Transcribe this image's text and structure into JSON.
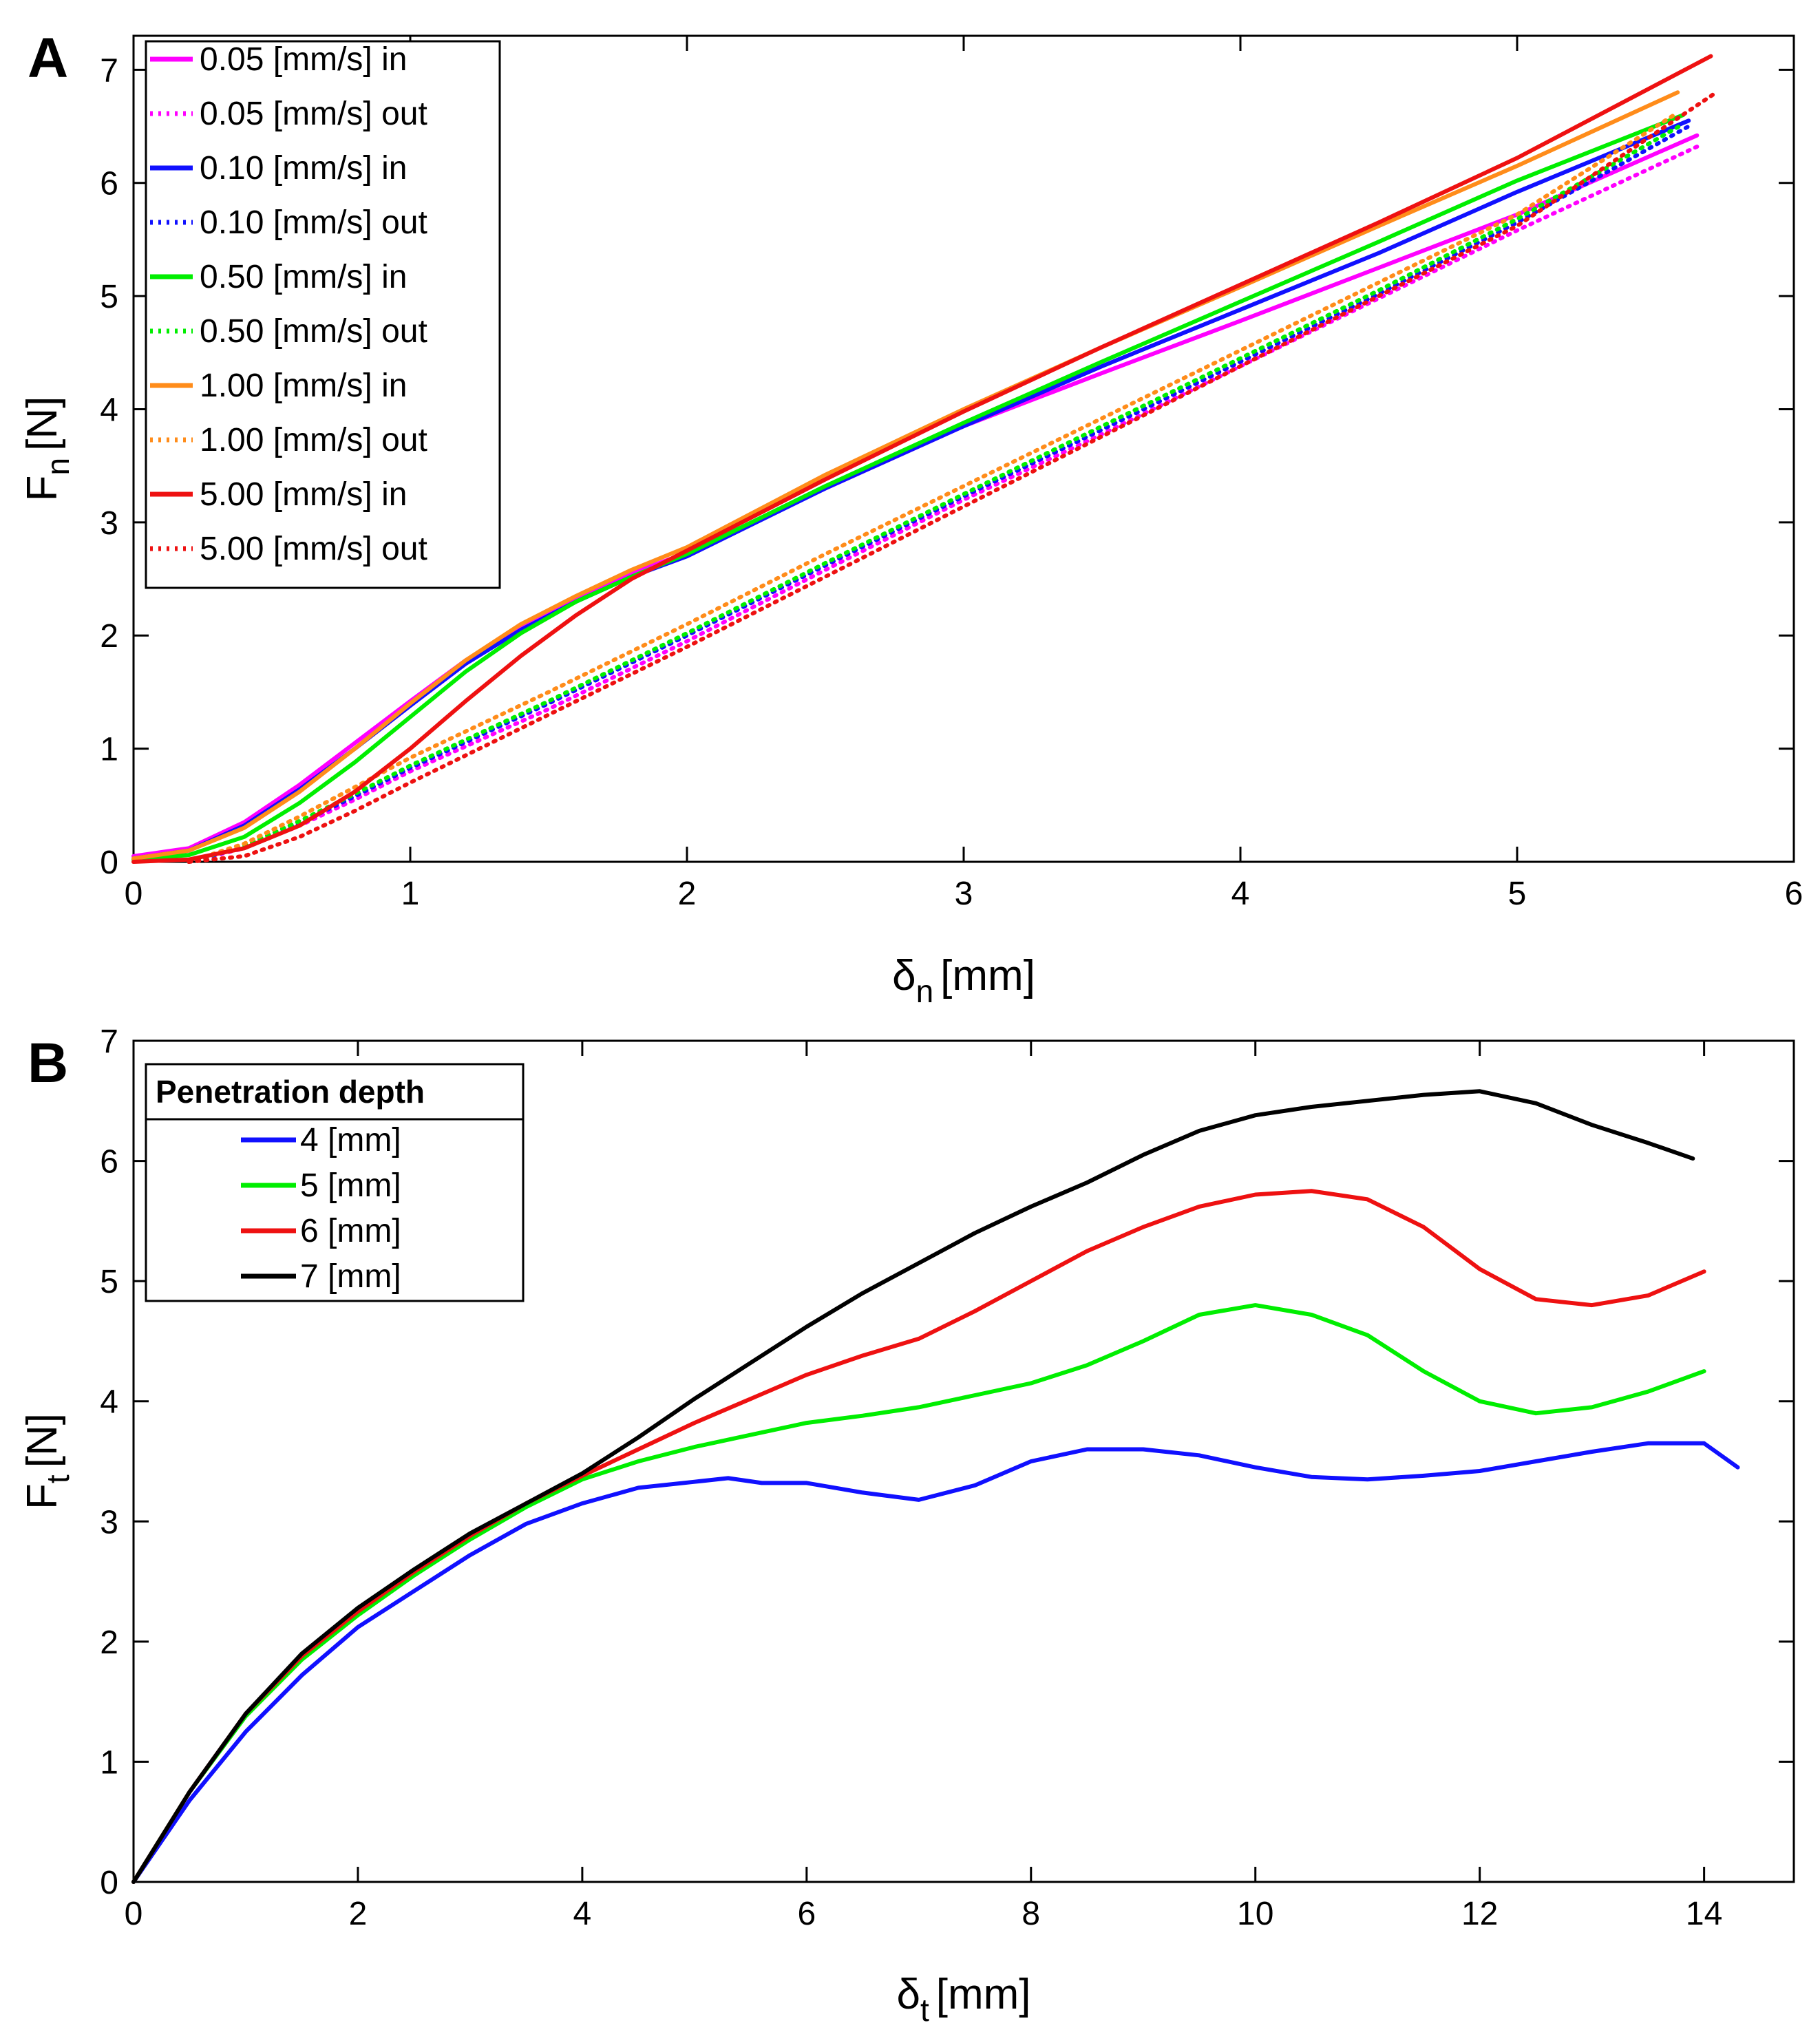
{
  "figure": {
    "panels": [
      "A",
      "B"
    ]
  },
  "chart_data": [
    {
      "panel": "A",
      "type": "line",
      "xlabel": {
        "symbol": "δ",
        "sub": "n",
        "unit": "[mm]"
      },
      "ylabel": {
        "symbol": "F",
        "sub": "n",
        "unit": "[N]"
      },
      "xlim": [
        0,
        6
      ],
      "ylim": [
        0,
        7.3
      ],
      "xticks": [
        0,
        1,
        2,
        3,
        4,
        5,
        6
      ],
      "yticks": [
        0,
        1,
        2,
        3,
        4,
        5,
        6,
        7
      ],
      "grid": false,
      "legend_position": "top-left",
      "series": [
        {
          "name": "0.05 [mm/s] in",
          "color": "#ff00ff",
          "dash": "solid",
          "x": [
            0,
            0.2,
            0.4,
            0.6,
            0.8,
            1.0,
            1.2,
            1.4,
            1.6,
            1.8,
            2.0,
            2.5,
            3.0,
            3.5,
            4.0,
            4.5,
            5.0,
            5.65
          ],
          "y": [
            0.05,
            0.12,
            0.35,
            0.68,
            1.05,
            1.42,
            1.78,
            2.08,
            2.32,
            2.55,
            2.73,
            3.3,
            3.85,
            4.32,
            4.78,
            5.25,
            5.72,
            6.42
          ]
        },
        {
          "name": "0.05 [mm/s] out",
          "color": "#ff00ff",
          "dash": "dotted",
          "x": [
            0.2,
            0.4,
            0.6,
            0.8,
            1.0,
            1.5,
            2.0,
            2.5,
            3.0,
            3.5,
            4.0,
            4.5,
            5.0,
            5.65
          ],
          "y": [
            0.0,
            0.12,
            0.32,
            0.55,
            0.8,
            1.35,
            1.95,
            2.58,
            3.2,
            3.78,
            4.38,
            4.98,
            5.58,
            6.32
          ]
        },
        {
          "name": "0.10 [mm/s] in",
          "color": "#1010ff",
          "dash": "solid",
          "x": [
            0,
            0.2,
            0.4,
            0.6,
            0.8,
            1.0,
            1.2,
            1.4,
            1.6,
            1.8,
            2.0,
            2.5,
            3.0,
            3.5,
            4.0,
            4.5,
            5.0,
            5.62
          ],
          "y": [
            0.03,
            0.1,
            0.32,
            0.64,
            1.0,
            1.38,
            1.75,
            2.05,
            2.3,
            2.52,
            2.7,
            3.3,
            3.85,
            4.38,
            4.88,
            5.38,
            5.92,
            6.55
          ]
        },
        {
          "name": "0.10 [mm/s] out",
          "color": "#1010ff",
          "dash": "dotted",
          "x": [
            0.2,
            0.4,
            0.6,
            0.8,
            1.0,
            1.5,
            2.0,
            2.5,
            3.0,
            3.5,
            4.0,
            4.5,
            5.0,
            5.62
          ],
          "y": [
            0.0,
            0.13,
            0.34,
            0.58,
            0.83,
            1.4,
            2.0,
            2.62,
            3.23,
            3.82,
            4.42,
            5.02,
            5.65,
            6.5
          ]
        },
        {
          "name": "0.50 [mm/s] in",
          "color": "#00ee00",
          "dash": "solid",
          "x": [
            0,
            0.2,
            0.4,
            0.6,
            0.8,
            1.0,
            1.2,
            1.4,
            1.6,
            1.8,
            2.0,
            2.5,
            3.0,
            3.5,
            4.0,
            4.5,
            5.0,
            5.6
          ],
          "y": [
            0.02,
            0.06,
            0.22,
            0.52,
            0.88,
            1.28,
            1.68,
            2.02,
            2.3,
            2.52,
            2.72,
            3.32,
            3.88,
            4.42,
            4.95,
            5.48,
            6.02,
            6.6
          ]
        },
        {
          "name": "0.50 [mm/s] out",
          "color": "#00ee00",
          "dash": "dotted",
          "x": [
            0.2,
            0.4,
            0.6,
            0.8,
            1.0,
            1.5,
            2.0,
            2.5,
            3.0,
            3.5,
            4.0,
            4.5,
            5.0,
            5.6
          ],
          "y": [
            0.0,
            0.14,
            0.36,
            0.6,
            0.85,
            1.42,
            2.02,
            2.64,
            3.25,
            3.85,
            4.45,
            5.05,
            5.68,
            6.52
          ]
        },
        {
          "name": "1.00 [mm/s] in",
          "color": "#ff8c1a",
          "dash": "solid",
          "x": [
            0,
            0.2,
            0.4,
            0.6,
            0.8,
            1.0,
            1.2,
            1.4,
            1.6,
            1.8,
            2.0,
            2.5,
            3.0,
            3.5,
            4.0,
            4.5,
            5.0,
            5.58
          ],
          "y": [
            0.03,
            0.1,
            0.3,
            0.62,
            1.0,
            1.4,
            1.78,
            2.1,
            2.35,
            2.58,
            2.78,
            3.42,
            4.0,
            4.55,
            5.08,
            5.62,
            6.15,
            6.8
          ]
        },
        {
          "name": "1.00 [mm/s] out",
          "color": "#ff8c1a",
          "dash": "dotted",
          "x": [
            0.2,
            0.4,
            0.6,
            0.8,
            1.0,
            1.5,
            2.0,
            2.5,
            3.0,
            3.5,
            4.0,
            4.5,
            5.0,
            5.58
          ],
          "y": [
            0.0,
            0.16,
            0.4,
            0.66,
            0.92,
            1.5,
            2.1,
            2.72,
            3.32,
            3.92,
            4.52,
            5.12,
            5.72,
            6.62
          ]
        },
        {
          "name": "5.00 [mm/s] in",
          "color": "#ee1111",
          "dash": "solid",
          "x": [
            0,
            0.2,
            0.4,
            0.6,
            0.8,
            1.0,
            1.2,
            1.4,
            1.6,
            1.8,
            2.0,
            2.5,
            3.0,
            3.5,
            4.0,
            4.5,
            5.0,
            5.7
          ],
          "y": [
            0.0,
            0.02,
            0.12,
            0.32,
            0.62,
            1.0,
            1.42,
            1.82,
            2.18,
            2.5,
            2.75,
            3.38,
            3.98,
            4.55,
            5.1,
            5.65,
            6.22,
            7.12
          ]
        },
        {
          "name": "5.00 [mm/s] out",
          "color": "#ee1111",
          "dash": "dotted",
          "x": [
            0.2,
            0.4,
            0.6,
            0.8,
            1.0,
            1.5,
            2.0,
            2.5,
            3.0,
            3.5,
            4.0,
            4.5,
            5.0,
            5.72
          ],
          "y": [
            0.0,
            0.05,
            0.22,
            0.45,
            0.7,
            1.3,
            1.9,
            2.52,
            3.14,
            3.76,
            4.38,
            5.0,
            5.62,
            6.8
          ]
        }
      ]
    },
    {
      "panel": "B",
      "type": "line",
      "xlabel": {
        "symbol": "δ",
        "sub": "t",
        "unit": "[mm]"
      },
      "ylabel": {
        "symbol": "F",
        "sub": "t",
        "unit": "[N]"
      },
      "xlim": [
        0,
        14.8
      ],
      "ylim": [
        0,
        7
      ],
      "xticks": [
        0,
        2,
        4,
        6,
        8,
        10,
        12,
        14
      ],
      "yticks": [
        0,
        1,
        2,
        3,
        4,
        5,
        6,
        7
      ],
      "grid": false,
      "legend_position": "top-left",
      "legend_title": "Penetration depth",
      "series": [
        {
          "name": "4 [mm]",
          "color": "#1010ff",
          "dash": "solid",
          "x": [
            0,
            0.5,
            1,
            1.5,
            2,
            2.5,
            3,
            3.5,
            4,
            4.5,
            5,
            5.3,
            5.6,
            6,
            6.5,
            7,
            7.5,
            8,
            8.5,
            9,
            9.5,
            10,
            10.5,
            11,
            11.5,
            12,
            12.5,
            13,
            13.5,
            14,
            14.3
          ],
          "y": [
            0,
            0.68,
            1.25,
            1.72,
            2.12,
            2.42,
            2.72,
            2.98,
            3.15,
            3.28,
            3.33,
            3.36,
            3.32,
            3.32,
            3.24,
            3.18,
            3.3,
            3.5,
            3.6,
            3.6,
            3.55,
            3.45,
            3.37,
            3.35,
            3.38,
            3.42,
            3.5,
            3.58,
            3.65,
            3.65,
            3.45
          ]
        },
        {
          "name": "5 [mm]",
          "color": "#00ee00",
          "dash": "solid",
          "x": [
            0,
            0.5,
            1,
            1.5,
            2,
            2.5,
            3,
            3.5,
            4,
            4.5,
            5,
            5.5,
            6,
            6.5,
            7,
            7.5,
            8,
            8.5,
            9,
            9.5,
            10,
            10.5,
            11,
            11.5,
            12,
            12.5,
            13,
            13.5,
            14
          ],
          "y": [
            0,
            0.75,
            1.38,
            1.85,
            2.22,
            2.55,
            2.85,
            3.12,
            3.35,
            3.5,
            3.62,
            3.72,
            3.82,
            3.88,
            3.95,
            4.05,
            4.15,
            4.3,
            4.5,
            4.72,
            4.8,
            4.72,
            4.55,
            4.25,
            4.0,
            3.9,
            3.95,
            4.08,
            4.25
          ]
        },
        {
          "name": "6 [mm]",
          "color": "#ee1111",
          "dash": "solid",
          "x": [
            0,
            0.5,
            1,
            1.5,
            2,
            2.5,
            3,
            3.5,
            4,
            4.5,
            5,
            5.5,
            6,
            6.5,
            7,
            7.5,
            8,
            8.5,
            9,
            9.5,
            10,
            10.5,
            11,
            11.5,
            12,
            12.5,
            13,
            13.5,
            14
          ],
          "y": [
            0,
            0.75,
            1.4,
            1.88,
            2.25,
            2.58,
            2.88,
            3.15,
            3.38,
            3.6,
            3.82,
            4.02,
            4.22,
            4.38,
            4.52,
            4.75,
            5.0,
            5.25,
            5.45,
            5.62,
            5.72,
            5.75,
            5.68,
            5.45,
            5.1,
            4.85,
            4.8,
            4.88,
            5.08
          ]
        },
        {
          "name": "7 [mm]",
          "color": "#000000",
          "dash": "solid",
          "x": [
            0,
            0.5,
            1,
            1.5,
            2,
            2.5,
            3,
            3.5,
            4,
            4.5,
            5,
            5.5,
            6,
            6.5,
            7,
            7.5,
            8,
            8.5,
            9,
            9.5,
            10,
            10.5,
            11,
            11.5,
            12,
            12.5,
            13,
            13.5,
            13.9
          ],
          "y": [
            0,
            0.75,
            1.4,
            1.9,
            2.28,
            2.6,
            2.9,
            3.15,
            3.4,
            3.7,
            4.02,
            4.32,
            4.62,
            4.9,
            5.15,
            5.4,
            5.62,
            5.82,
            6.05,
            6.25,
            6.38,
            6.45,
            6.5,
            6.55,
            6.58,
            6.48,
            6.3,
            6.15,
            6.02
          ]
        }
      ]
    }
  ]
}
